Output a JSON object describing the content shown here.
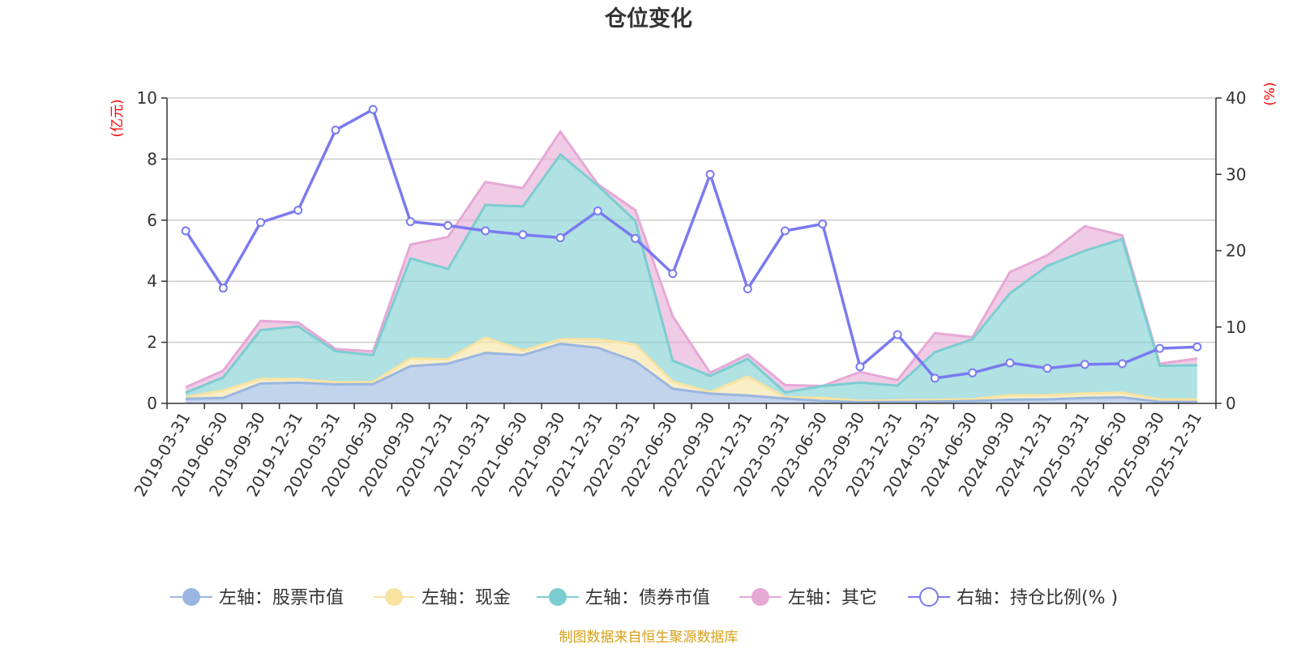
{
  "chart_data": {
    "type": "area",
    "title": "仓位变化",
    "source": "制图数据来自恒生聚源数据库",
    "left_unit": "(亿元)",
    "right_unit": "(%)",
    "left_ylim": [
      0,
      10
    ],
    "left_ticks": [
      "0",
      "2",
      "4",
      "6",
      "8",
      "10"
    ],
    "right_ylim": [
      0,
      40
    ],
    "right_ticks": [
      "0",
      "10",
      "20",
      "30",
      "40"
    ],
    "categories": [
      "2019-03-31",
      "2019-06-30",
      "2019-09-30",
      "2019-12-31",
      "2020-03-31",
      "2020-06-30",
      "2020-09-30",
      "2020-12-31",
      "2021-03-31",
      "2021-06-30",
      "2021-09-30",
      "2021-12-31",
      "2022-03-31",
      "2022-06-30",
      "2022-09-30",
      "2022-12-31",
      "2023-03-31",
      "2023-06-30",
      "2023-09-30",
      "2023-12-31",
      "2024-03-31",
      "2024-06-30",
      "2024-09-30",
      "2024-12-31",
      "2025-03-31",
      "2025-06-30",
      "2025-09-30",
      "2025-12-31"
    ],
    "stacked_series": [
      {
        "name": "左轴：股票市值",
        "axis": "left",
        "color": "#9ab6e0",
        "values": [
          0.15,
          0.18,
          0.65,
          0.68,
          0.62,
          0.63,
          1.22,
          1.3,
          1.65,
          1.58,
          1.95,
          1.82,
          1.38,
          0.48,
          0.32,
          0.26,
          0.16,
          0.08,
          0.04,
          0.05,
          0.06,
          0.08,
          0.12,
          0.13,
          0.18,
          0.2,
          0.05,
          0.05
        ]
      },
      {
        "name": "左轴：现金",
        "axis": "left",
        "color": "#f7e3a1",
        "values": [
          0.05,
          0.25,
          0.15,
          0.12,
          0.07,
          0.07,
          0.25,
          0.15,
          0.5,
          0.15,
          0.15,
          0.28,
          0.55,
          0.23,
          0.05,
          0.62,
          0.04,
          0.1,
          0.04,
          0.05,
          0.05,
          0.06,
          0.15,
          0.14,
          0.14,
          0.15,
          0.08,
          0.08
        ]
      },
      {
        "name": "左轴：债券市值",
        "axis": "left",
        "color": "#7ccdd0",
        "values": [
          0.15,
          0.42,
          1.6,
          1.72,
          1.02,
          0.88,
          3.28,
          2.95,
          4.35,
          4.72,
          6.05,
          5.03,
          4.05,
          0.69,
          0.53,
          0.58,
          0.16,
          0.39,
          0.6,
          0.48,
          1.57,
          1.96,
          3.33,
          4.23,
          4.68,
          5.03,
          1.1,
          1.12
        ]
      },
      {
        "name": "左轴：其它",
        "axis": "left",
        "color": "#e6a8d6",
        "values": [
          0.18,
          0.22,
          0.3,
          0.13,
          0.07,
          0.12,
          0.45,
          1.05,
          0.75,
          0.6,
          0.75,
          0.05,
          0.35,
          1.45,
          0.1,
          0.14,
          0.24,
          0.0,
          0.35,
          0.18,
          0.62,
          0.07,
          0.7,
          0.35,
          0.8,
          0.12,
          0.07,
          0.22
        ]
      }
    ],
    "line_series": {
      "name": "右轴：持仓比例(% )",
      "axis": "right",
      "color": "#7a7af0",
      "values": [
        22.6,
        15.1,
        23.7,
        25.3,
        35.8,
        38.5,
        23.8,
        23.3,
        22.6,
        22.1,
        21.7,
        25.2,
        21.6,
        17.0,
        30.0,
        15.0,
        22.6,
        23.5,
        4.8,
        9.0,
        3.3,
        4.0,
        5.3,
        4.6,
        5.1,
        5.2,
        7.2,
        7.4
      ]
    }
  },
  "legend": {
    "stock": "左轴：股票市值",
    "cash": "左轴：现金",
    "bond": "左轴：债券市值",
    "other": "左轴：其它",
    "ratio": "右轴：持仓比例(% )"
  }
}
